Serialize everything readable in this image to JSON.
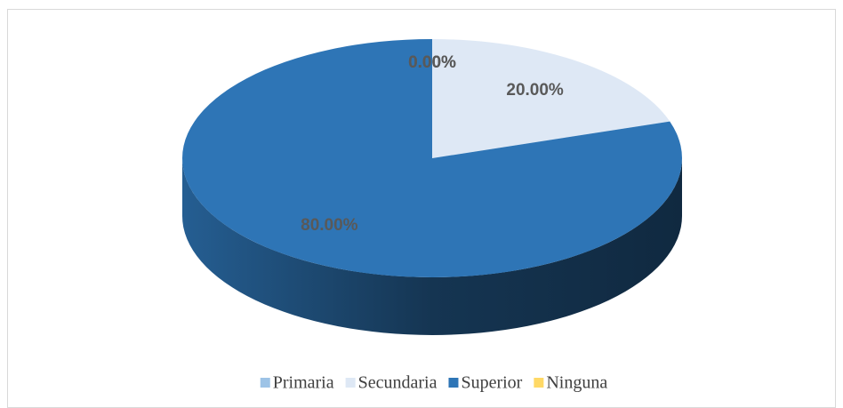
{
  "chart_data": {
    "type": "pie",
    "categories": [
      "Primaria",
      "Secundaria",
      "Superior",
      "Ninguna"
    ],
    "values": [
      0,
      20,
      80,
      0
    ],
    "value_labels": [
      "0.00%",
      "20.00%",
      "80.00%",
      "0.00%"
    ],
    "colors": [
      "#9dc3e6",
      "#dee8f5",
      "#2e75b6",
      "#ffd966"
    ],
    "legend": "bottom"
  }
}
